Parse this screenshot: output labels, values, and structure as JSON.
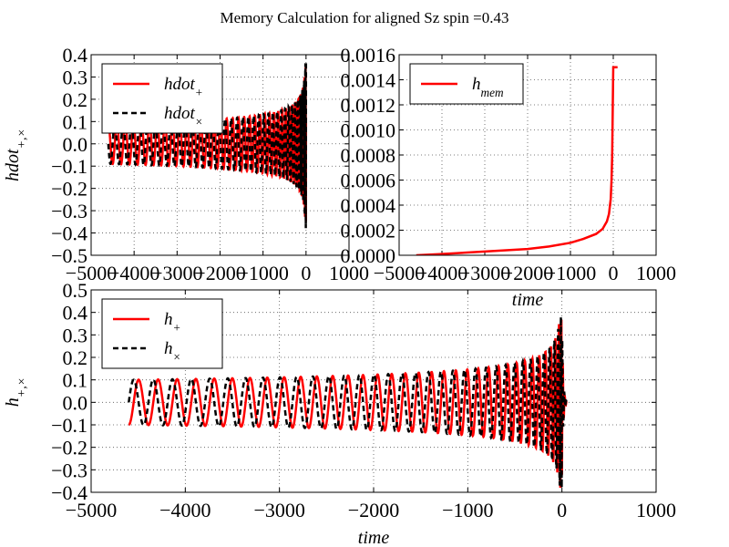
{
  "figure": {
    "title": "Memory Calculation for aligned Sz spin =0.43"
  },
  "chart_data": [
    {
      "type": "line",
      "panel": "top-left",
      "ylabel": "hdot_{+,×}",
      "xlabel": "",
      "xlim": [
        -5000,
        1000
      ],
      "ylim": [
        -0.5,
        0.4
      ],
      "xticks": [
        "−5000",
        "−4000",
        "−3000",
        "−2000",
        "−1000",
        "0",
        "1000"
      ],
      "yticks": [
        "−0.5",
        "−0.4",
        "−0.3",
        "−0.2",
        "−0.1",
        "0.0",
        "0.1",
        "0.2",
        "0.3",
        "0.4"
      ],
      "legend_position": "top-left",
      "legend": [
        {
          "base": "hdot",
          "sub": "+",
          "style": "solid red"
        },
        {
          "base": "hdot",
          "sub": "×",
          "style": "dashed black"
        }
      ],
      "series": [
        {
          "name": "hdot_+",
          "color": "#ff0000",
          "dash": "solid",
          "x_start": -4600,
          "x_end": 0,
          "amplitude_early": 0.09,
          "amplitude_peak": 0.38,
          "period_early": 200,
          "phase": 0
        },
        {
          "name": "hdot_×",
          "color": "#000000",
          "dash": "dashed",
          "x_start": -4600,
          "x_end": 0,
          "amplitude_early": 0.09,
          "amplitude_peak": 0.38,
          "period_early": 200,
          "phase": 1.5708
        }
      ]
    },
    {
      "type": "line",
      "panel": "top-right",
      "xlabel": "time",
      "ylabel": "",
      "xlim": [
        -5000,
        1000
      ],
      "ylim": [
        0,
        0.0016
      ],
      "xticks": [
        "−5000",
        "−4000",
        "−3000",
        "−2000",
        "−1000",
        "0",
        "1000"
      ],
      "yticks": [
        "0.0000",
        "0.0002",
        "0.0004",
        "0.0006",
        "0.0008",
        "0.0010",
        "0.0012",
        "0.0014",
        "0.0016"
      ],
      "legend_position": "top-left",
      "legend": [
        {
          "base": "h",
          "sub": "mem",
          "style": "solid red"
        }
      ],
      "series": [
        {
          "name": "h_mem",
          "color": "#ff0000",
          "dash": "solid",
          "x": [
            -4600,
            -4000,
            -3000,
            -2000,
            -1500,
            -1000,
            -700,
            -400,
            -250,
            -150,
            -100,
            -60,
            -40,
            -25,
            -15,
            -5,
            0,
            100
          ],
          "y": [
            0.0,
            1e-05,
            3e-05,
            5e-05,
            7e-05,
            0.0001,
            0.00013,
            0.00017,
            0.00021,
            0.00027,
            0.00033,
            0.00045,
            0.0006,
            0.0008,
            0.0011,
            0.0014,
            0.0015,
            0.0015
          ]
        }
      ]
    },
    {
      "type": "line",
      "panel": "bottom",
      "xlabel": "time",
      "ylabel": "h_{+,×}",
      "xlim": [
        -5000,
        1000
      ],
      "ylim": [
        -0.4,
        0.5
      ],
      "xticks": [
        "−5000",
        "−4000",
        "−3000",
        "−2000",
        "−1000",
        "0",
        "1000"
      ],
      "yticks": [
        "−0.4",
        "−0.3",
        "−0.2",
        "−0.1",
        "0.0",
        "0.1",
        "0.2",
        "0.3",
        "0.4",
        "0.5"
      ],
      "legend_position": "top-left",
      "legend": [
        {
          "base": "h",
          "sub": "+",
          "style": "solid red"
        },
        {
          "base": "h",
          "sub": "×",
          "style": "dashed black"
        }
      ],
      "series": [
        {
          "name": "h_+",
          "color": "#ff0000",
          "dash": "solid",
          "x_start": -4600,
          "x_end": 50,
          "amplitude_early": 0.1,
          "amplitude_peak": 0.38,
          "period_early": 210,
          "phase": 3.1416
        },
        {
          "name": "h_×",
          "color": "#000000",
          "dash": "dashed",
          "x_start": -4600,
          "x_end": 50,
          "amplitude_early": 0.1,
          "amplitude_peak": 0.38,
          "period_early": 210,
          "phase": 4.7124
        }
      ]
    }
  ]
}
